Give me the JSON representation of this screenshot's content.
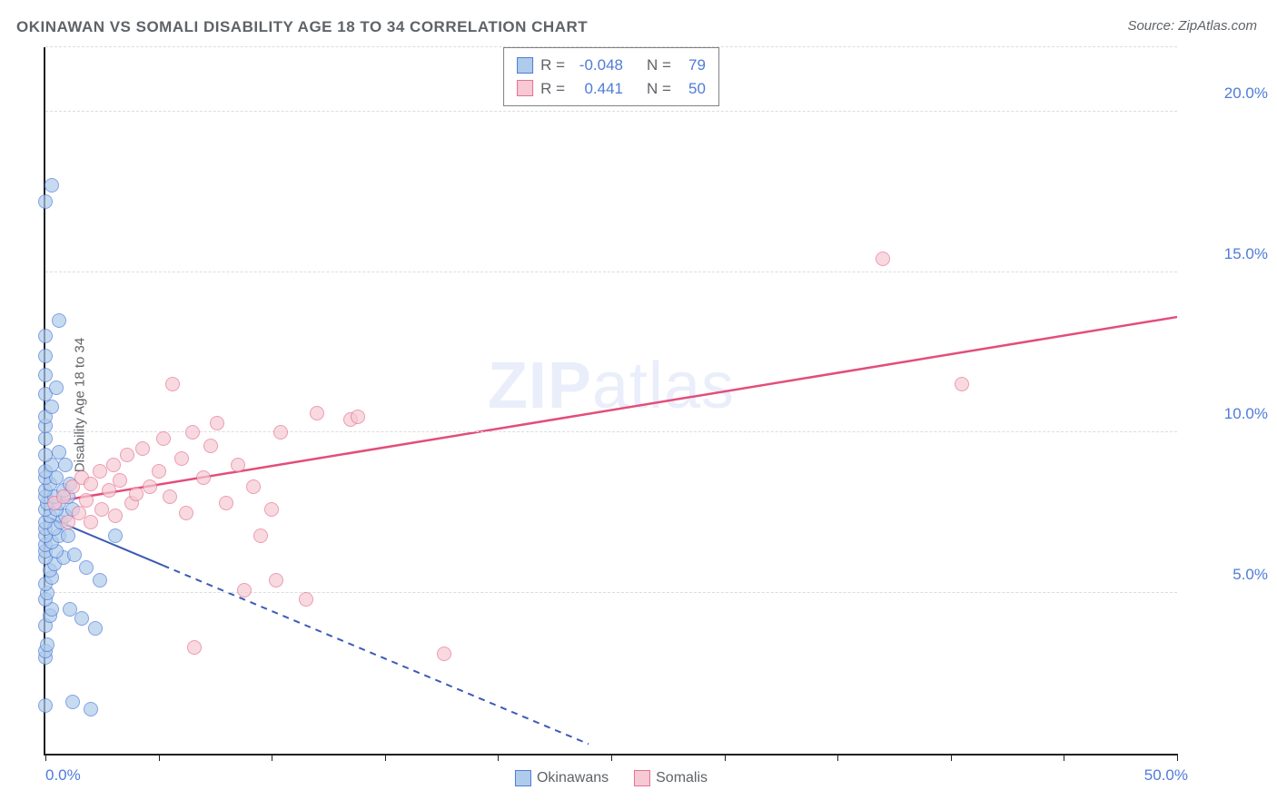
{
  "title": "OKINAWAN VS SOMALI DISABILITY AGE 18 TO 34 CORRELATION CHART",
  "source": "Source: ZipAtlas.com",
  "ylabel": "Disability Age 18 to 34",
  "watermark_bold": "ZIP",
  "watermark_light": "atlas",
  "chart": {
    "type": "scatter",
    "xlim": [
      0,
      50
    ],
    "ylim": [
      0,
      22
    ],
    "background_color": "#ffffff",
    "grid_color": "#dadce0",
    "axis_color": "#202124",
    "tick_label_color": "#4f7bd9",
    "tick_fontsize": 17,
    "ylabel_fontsize": 15,
    "title_color": "#5f6368",
    "title_fontsize": 17,
    "y_gridlines": [
      5,
      10,
      15,
      20,
      22
    ],
    "y_tick_labels": [
      {
        "y": 5,
        "label": "5.0%"
      },
      {
        "y": 10,
        "label": "10.0%"
      },
      {
        "y": 15,
        "label": "15.0%"
      },
      {
        "y": 20,
        "label": "20.0%"
      }
    ],
    "x_ticks": [
      0,
      5,
      10,
      15,
      20,
      25,
      30,
      35,
      40,
      45,
      50
    ],
    "x_tick_labels": [
      {
        "x": 0,
        "label": "0.0%",
        "align": "left"
      },
      {
        "x": 50,
        "label": "50.0%",
        "align": "right"
      }
    ],
    "marker_size": 16,
    "series": [
      {
        "key": "okinawans",
        "name": "Okinawans",
        "fill_color": "#aecbeb",
        "stroke_color": "#4f7bd9",
        "line_color": "#3b5bb5",
        "line_solid_xmax": 5.2,
        "line_dash_xmax": 24,
        "line_width": 2,
        "trend": {
          "x0": 0,
          "y0": 7.4,
          "x1": 24,
          "y1": 0.3
        },
        "points": [
          [
            0.0,
            3.0
          ],
          [
            0.0,
            3.2
          ],
          [
            0.1,
            3.4
          ],
          [
            0.0,
            4.0
          ],
          [
            0.2,
            4.3
          ],
          [
            0.3,
            4.5
          ],
          [
            0.0,
            4.8
          ],
          [
            0.1,
            5.0
          ],
          [
            0.0,
            5.3
          ],
          [
            0.3,
            5.5
          ],
          [
            0.2,
            5.7
          ],
          [
            0.4,
            5.9
          ],
          [
            0.0,
            6.1
          ],
          [
            0.8,
            6.1
          ],
          [
            0.0,
            6.3
          ],
          [
            0.5,
            6.3
          ],
          [
            0.0,
            6.5
          ],
          [
            0.3,
            6.6
          ],
          [
            0.0,
            6.8
          ],
          [
            0.6,
            6.8
          ],
          [
            1.0,
            6.8
          ],
          [
            0.0,
            7.0
          ],
          [
            0.4,
            7.0
          ],
          [
            0.0,
            7.2
          ],
          [
            0.7,
            7.2
          ],
          [
            0.2,
            7.4
          ],
          [
            0.9,
            7.4
          ],
          [
            0.0,
            7.6
          ],
          [
            0.5,
            7.6
          ],
          [
            1.2,
            7.6
          ],
          [
            0.1,
            7.8
          ],
          [
            0.6,
            7.8
          ],
          [
            0.0,
            8.0
          ],
          [
            0.4,
            8.0
          ],
          [
            1.0,
            8.0
          ],
          [
            0.0,
            8.2
          ],
          [
            0.8,
            8.2
          ],
          [
            0.2,
            8.4
          ],
          [
            1.1,
            8.4
          ],
          [
            0.0,
            8.6
          ],
          [
            0.5,
            8.6
          ],
          [
            0.0,
            8.8
          ],
          [
            0.3,
            9.0
          ],
          [
            0.9,
            9.0
          ],
          [
            0.0,
            9.3
          ],
          [
            0.6,
            9.4
          ],
          [
            0.0,
            9.8
          ],
          [
            0.0,
            10.2
          ],
          [
            0.0,
            10.5
          ],
          [
            0.3,
            10.8
          ],
          [
            0.0,
            11.2
          ],
          [
            0.5,
            11.4
          ],
          [
            0.0,
            11.8
          ],
          [
            0.0,
            12.4
          ],
          [
            0.0,
            13.0
          ],
          [
            0.6,
            13.5
          ],
          [
            0.0,
            17.2
          ],
          [
            0.3,
            17.7
          ],
          [
            0.0,
            1.5
          ],
          [
            1.2,
            1.6
          ],
          [
            2.0,
            1.4
          ],
          [
            1.1,
            4.5
          ],
          [
            1.6,
            4.2
          ],
          [
            2.2,
            3.9
          ],
          [
            1.3,
            6.2
          ],
          [
            1.8,
            5.8
          ],
          [
            2.4,
            5.4
          ],
          [
            3.1,
            6.8
          ]
        ]
      },
      {
        "key": "somalis",
        "name": "Somalis",
        "fill_color": "#f6c9d4",
        "stroke_color": "#e57394",
        "line_color": "#e34d7a",
        "line_solid_xmax": 50,
        "line_dash_xmax": 50,
        "line_width": 2.5,
        "trend": {
          "x0": 0,
          "y0": 7.8,
          "x1": 50,
          "y1": 13.6
        },
        "points": [
          [
            0.4,
            7.8
          ],
          [
            0.8,
            8.0
          ],
          [
            1.0,
            7.2
          ],
          [
            1.2,
            8.3
          ],
          [
            1.5,
            7.5
          ],
          [
            1.6,
            8.6
          ],
          [
            1.8,
            7.9
          ],
          [
            2.0,
            8.4
          ],
          [
            2.0,
            7.2
          ],
          [
            2.4,
            8.8
          ],
          [
            2.5,
            7.6
          ],
          [
            2.8,
            8.2
          ],
          [
            3.0,
            9.0
          ],
          [
            3.1,
            7.4
          ],
          [
            3.3,
            8.5
          ],
          [
            3.6,
            9.3
          ],
          [
            3.8,
            7.8
          ],
          [
            4.0,
            8.1
          ],
          [
            4.3,
            9.5
          ],
          [
            4.6,
            8.3
          ],
          [
            5.0,
            8.8
          ],
          [
            5.2,
            9.8
          ],
          [
            5.5,
            8.0
          ],
          [
            5.6,
            11.5
          ],
          [
            6.0,
            9.2
          ],
          [
            6.2,
            7.5
          ],
          [
            6.5,
            10.0
          ],
          [
            6.6,
            3.3
          ],
          [
            7.0,
            8.6
          ],
          [
            7.3,
            9.6
          ],
          [
            7.6,
            10.3
          ],
          [
            8.0,
            7.8
          ],
          [
            8.5,
            9.0
          ],
          [
            8.8,
            5.1
          ],
          [
            9.2,
            8.3
          ],
          [
            9.5,
            6.8
          ],
          [
            10.0,
            7.6
          ],
          [
            10.2,
            5.4
          ],
          [
            10.4,
            10.0
          ],
          [
            11.5,
            4.8
          ],
          [
            12.0,
            10.6
          ],
          [
            13.5,
            10.4
          ],
          [
            13.8,
            10.5
          ],
          [
            17.6,
            3.1
          ],
          [
            37.0,
            15.4
          ],
          [
            40.5,
            11.5
          ]
        ]
      }
    ],
    "legend_top": [
      {
        "series": 0,
        "R_label": "R =",
        "R": "-0.048",
        "N_label": "N =",
        "N": "79"
      },
      {
        "series": 1,
        "R_label": "R =",
        "R": "0.441",
        "N_label": "N =",
        "N": "50"
      }
    ],
    "legend_bottom": [
      {
        "series": 0,
        "label": "Okinawans"
      },
      {
        "series": 1,
        "label": "Somalis"
      }
    ]
  }
}
